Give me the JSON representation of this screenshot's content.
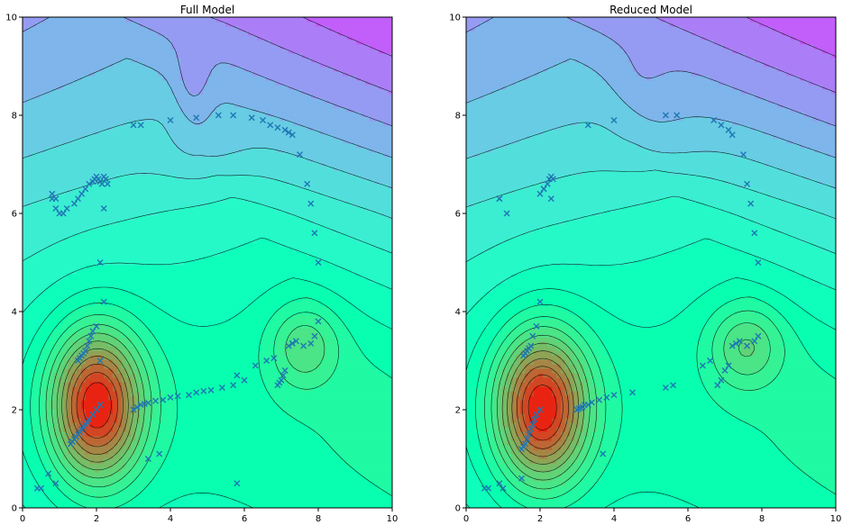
{
  "colors": {
    "marker": "#1f77b4",
    "contour_line": "#000000",
    "colormap": "rainbow"
  },
  "chart_data": [
    {
      "type": "contourf",
      "title": "Full Model",
      "xlim": [
        0,
        10
      ],
      "ylim": [
        0,
        10
      ],
      "x_ticks": [
        "0",
        "2",
        "4",
        "6",
        "8",
        "10"
      ],
      "y_ticks": [
        "0",
        "2",
        "4",
        "6",
        "8",
        "10"
      ],
      "field": {
        "peaks": [
          {
            "x": 2.0,
            "y": 2.1,
            "amp": 3.4,
            "sx": 0.85,
            "sy": 1.05
          },
          {
            "x": 7.6,
            "y": 3.3,
            "amp": 1.1,
            "sx": 0.65,
            "sy": 0.6
          }
        ],
        "valleys": [
          {
            "x": 4.6,
            "y": 8.6,
            "amp": 0.45,
            "sx": 0.35,
            "sy": 0.6
          },
          {
            "x": 4.9,
            "y": 7.3,
            "amp": 0.35,
            "sx": 0.8,
            "sy": 0.5
          }
        ]
      },
      "series": [
        {
          "marker": "x",
          "x": [
            0.4,
            0.5,
            0.7,
            0.9,
            0.9,
            1.1,
            0.8,
            0.8,
            0.9,
            1.0,
            1.2,
            1.4,
            1.5,
            1.6,
            1.7,
            1.8,
            1.9,
            1.95,
            2.0,
            2.05,
            2.1,
            2.15,
            2.2,
            2.25,
            2.3,
            2.2,
            2.1,
            1.3,
            1.35,
            1.4,
            1.45,
            1.5,
            1.55,
            1.6,
            1.65,
            1.7,
            1.75,
            1.8,
            1.9,
            2.0,
            2.1,
            1.5,
            1.55,
            1.6,
            1.65,
            1.7,
            1.75,
            1.8,
            1.85,
            1.9,
            2.0,
            3.0,
            3.1,
            3.2,
            3.3,
            3.4,
            3.6,
            3.8,
            4.0,
            4.2,
            4.5,
            4.7,
            4.9,
            5.1,
            5.4,
            5.7,
            5.8,
            6.0,
            6.3,
            6.6,
            6.8,
            6.9,
            6.95,
            7.0,
            7.05,
            7.1,
            7.2,
            7.3,
            7.4,
            7.6,
            7.8,
            7.9,
            8.0,
            7.3,
            3.4,
            3.7,
            2.2,
            2.1,
            3.2,
            3.0,
            4.0,
            4.7,
            5.3,
            5.7,
            6.2,
            6.5,
            6.7,
            6.9,
            7.1,
            7.2,
            7.3,
            7.5,
            7.7,
            7.8,
            7.9,
            8.0,
            5.8
          ],
          "y": [
            0.4,
            0.4,
            0.7,
            0.5,
            6.3,
            6.0,
            6.3,
            6.4,
            6.1,
            6.0,
            6.1,
            6.2,
            6.3,
            6.4,
            6.5,
            6.6,
            6.65,
            6.7,
            6.75,
            6.7,
            6.65,
            6.6,
            6.75,
            6.7,
            6.6,
            6.1,
            5.0,
            1.3,
            1.35,
            1.4,
            1.45,
            1.5,
            1.55,
            1.6,
            1.65,
            1.7,
            1.75,
            1.8,
            1.9,
            2.0,
            2.1,
            3.0,
            3.05,
            3.1,
            3.15,
            3.2,
            3.3,
            3.4,
            3.5,
            3.6,
            3.7,
            2.0,
            2.05,
            2.1,
            2.12,
            2.14,
            2.18,
            2.2,
            2.25,
            2.28,
            2.3,
            2.35,
            2.38,
            2.4,
            2.45,
            2.5,
            2.7,
            2.6,
            2.9,
            3.0,
            3.05,
            2.5,
            2.55,
            2.6,
            2.7,
            2.8,
            3.3,
            3.35,
            3.4,
            3.3,
            3.35,
            3.5,
            3.8,
            3.35,
            1.0,
            1.1,
            4.2,
            3.0,
            7.8,
            7.8,
            7.9,
            7.95,
            8.0,
            8.0,
            7.95,
            7.9,
            7.8,
            7.75,
            7.7,
            7.65,
            7.6,
            7.2,
            6.6,
            6.2,
            5.6,
            5.0,
            0.5
          ],
          "color": "#1f77b4"
        }
      ]
    },
    {
      "type": "contourf",
      "title": "Reduced Model",
      "xlim": [
        0,
        10
      ],
      "ylim": [
        0,
        10
      ],
      "x_ticks": [
        "0",
        "2",
        "4",
        "6",
        "8",
        "10"
      ],
      "y_ticks": [
        "0",
        "2",
        "4",
        "6",
        "8",
        "10"
      ],
      "field": {
        "peaks": [
          {
            "x": 2.05,
            "y": 2.05,
            "amp": 3.4,
            "sx": 0.85,
            "sy": 1.05
          },
          {
            "x": 7.55,
            "y": 3.3,
            "amp": 1.2,
            "sx": 0.7,
            "sy": 0.6
          }
        ],
        "valleys": [
          {
            "x": 4.7,
            "y": 8.6,
            "amp": 0.25,
            "sx": 0.6,
            "sy": 0.5
          },
          {
            "x": 5.1,
            "y": 7.5,
            "amp": 0.3,
            "sx": 0.9,
            "sy": 0.5
          }
        ]
      },
      "series": [
        {
          "marker": "x",
          "x": [
            0.5,
            0.6,
            0.9,
            1.0,
            1.1,
            0.9,
            0.9,
            1.5,
            1.55,
            1.6,
            1.65,
            1.7,
            1.75,
            1.8,
            1.85,
            1.9,
            2.0,
            1.55,
            1.6,
            1.65,
            1.7,
            1.75,
            1.8,
            1.9,
            2.0,
            2.1,
            2.2,
            2.25,
            2.3,
            2.35,
            2.3,
            2.0,
            2.1,
            3.0,
            3.05,
            3.1,
            3.15,
            3.2,
            3.3,
            3.4,
            3.6,
            3.8,
            4.0,
            4.5,
            5.4,
            5.6,
            6.4,
            6.6,
            6.8,
            6.9,
            7.0,
            7.1,
            7.2,
            7.3,
            7.4,
            7.6,
            7.8,
            7.9,
            3.7,
            3.3,
            4.0,
            5.4,
            5.7,
            6.7,
            6.9,
            7.1,
            7.2,
            7.5,
            7.6,
            7.7,
            7.8,
            7.9,
            1.5
          ],
          "y": [
            0.4,
            0.4,
            0.5,
            0.4,
            6.0,
            6.3,
            6.3,
            1.2,
            1.25,
            1.3,
            1.4,
            1.5,
            1.6,
            1.7,
            1.8,
            1.9,
            2.0,
            3.1,
            3.15,
            3.2,
            3.25,
            3.3,
            3.5,
            3.7,
            6.4,
            6.5,
            6.6,
            6.7,
            6.75,
            6.7,
            6.3,
            4.2,
            6.5,
            2.0,
            2.02,
            2.04,
            2.06,
            2.1,
            2.1,
            2.15,
            2.2,
            2.25,
            2.3,
            2.35,
            2.45,
            2.5,
            2.9,
            3.0,
            2.5,
            2.6,
            2.8,
            2.9,
            3.3,
            3.35,
            3.4,
            3.3,
            3.4,
            3.5,
            1.1,
            7.8,
            7.9,
            8.0,
            8.0,
            7.9,
            7.8,
            7.7,
            7.6,
            7.2,
            6.6,
            6.2,
            5.6,
            5.0,
            0.6
          ],
          "color": "#1f77b4"
        }
      ]
    }
  ]
}
